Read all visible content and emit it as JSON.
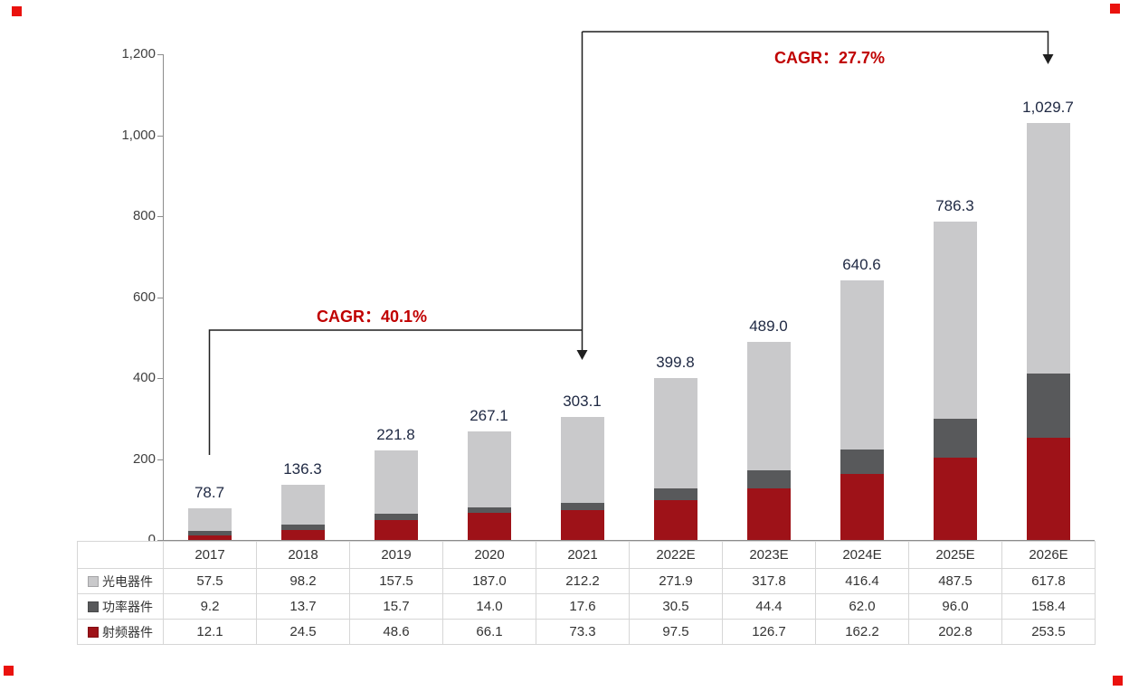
{
  "chart_data": {
    "type": "bar",
    "stacked": true,
    "title": "",
    "categories": [
      "2017",
      "2018",
      "2019",
      "2020",
      "2021",
      "2022E",
      "2023E",
      "2024E",
      "2025E",
      "2026E"
    ],
    "series": [
      {
        "name": "光电器件",
        "color": "#c9c9cb",
        "values": [
          57.5,
          98.2,
          157.5,
          187.0,
          212.2,
          271.9,
          317.8,
          416.4,
          487.5,
          617.8
        ]
      },
      {
        "name": "功率器件",
        "color": "#58595b",
        "values": [
          9.2,
          13.7,
          15.7,
          14.0,
          17.6,
          30.5,
          44.4,
          62.0,
          96.0,
          158.4
        ]
      },
      {
        "name": "射频器件",
        "color": "#9e1218",
        "values": [
          12.1,
          24.5,
          48.6,
          66.1,
          73.3,
          97.5,
          126.7,
          162.2,
          202.8,
          253.5
        ]
      }
    ],
    "totals": [
      78.7,
      136.3,
      221.8,
      267.1,
      303.1,
      399.8,
      489.0,
      640.6,
      786.3,
      1029.7
    ],
    "y_axis": {
      "min": 0,
      "max": 1200,
      "ticks": [
        0,
        200,
        400,
        600,
        800,
        1000,
        1200
      ]
    },
    "grid": false,
    "legend_position": "table-left",
    "annotations": [
      {
        "label": "CAGR：40.1%",
        "from": "2017",
        "to": "2021"
      },
      {
        "label": "CAGR：27.7%",
        "from": "2021",
        "to": "2026E"
      }
    ]
  },
  "colors": {
    "annotation_text": "#c00000",
    "annotation_line": "#1f1f1f",
    "accent_square": "#ea120e",
    "total_label": "#202a44",
    "axis": "#8c8c8c"
  }
}
